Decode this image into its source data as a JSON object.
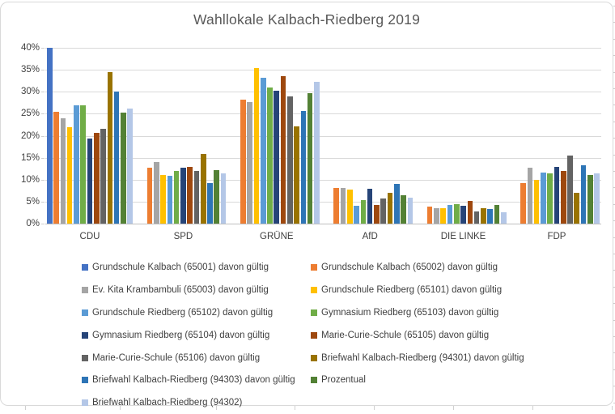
{
  "chart_data": {
    "type": "bar",
    "title": "Wahllokale Kalbach-Riedberg 2019",
    "categories": [
      "CDU",
      "SPD",
      "GRÜNE",
      "AfD",
      "DIE LINKE",
      "FDP"
    ],
    "y_axis": {
      "unit": "%",
      "min": 0,
      "max": 40,
      "step": 5,
      "tick_labels": [
        "40%",
        "35%",
        "30%",
        "25%",
        "20%",
        "15%",
        "10%",
        "5%",
        "0%"
      ]
    },
    "grid": true,
    "legend_position": "bottom",
    "series": [
      {
        "name": "Grundschule Kalbach (65001) davon gültig",
        "color": "#4472C4",
        "values": [
          40.0,
          0,
          0,
          0,
          0,
          0
        ]
      },
      {
        "name": "Grundschule Kalbach (65002) davon gültig",
        "color": "#ED7D31",
        "values": [
          25.4,
          12.8,
          28.3,
          8.1,
          3.9,
          9.2
        ]
      },
      {
        "name": "Ev. Kita Krambambuli (65003) davon gültig",
        "color": "#A5A5A5",
        "values": [
          24.0,
          14.1,
          27.6,
          8.2,
          3.5,
          12.8
        ]
      },
      {
        "name": "Grundschule Riedberg (65101) davon gültig",
        "color": "#FFC000",
        "values": [
          21.9,
          11.1,
          35.4,
          7.7,
          3.6,
          9.9
        ]
      },
      {
        "name": "Grundschule Riedberg (65102) davon gültig",
        "color": "#5B9BD5",
        "values": [
          27.0,
          10.8,
          33.2,
          4.1,
          4.2,
          11.7
        ]
      },
      {
        "name": "Gymnasium Riedberg (65103) davon gültig",
        "color": "#70AD47",
        "values": [
          27.0,
          12.0,
          30.9,
          5.4,
          4.5,
          11.4
        ]
      },
      {
        "name": "Gymnasium Riedberg (65104) davon gültig",
        "color": "#264478",
        "values": [
          19.3,
          12.7,
          30.2,
          8.0,
          4.1,
          12.9
        ]
      },
      {
        "name": "Marie-Curie-Schule (65105) davon gültig",
        "color": "#9E480E",
        "values": [
          20.6,
          13.0,
          33.5,
          4.3,
          5.2,
          12.0
        ]
      },
      {
        "name": "Marie-Curie-Schule (65106) davon gültig",
        "color": "#636363",
        "values": [
          21.5,
          11.9,
          29.0,
          5.7,
          2.8,
          15.5
        ]
      },
      {
        "name": "Briefwahl Kalbach-Riedberg (94301) davon gültig",
        "color": "#997300",
        "values": [
          34.5,
          15.8,
          22.1,
          7.0,
          3.5,
          7.1
        ]
      },
      {
        "name": "Briefwahl Kalbach-Riedberg (94303) davon gültig",
        "color": "#2E75B6",
        "values": [
          30.0,
          9.2,
          25.7,
          9.1,
          3.3,
          13.2
        ]
      },
      {
        "name": "Prozentual",
        "color": "#538135",
        "values": [
          25.2,
          12.2,
          29.7,
          6.4,
          4.2,
          11.1
        ]
      },
      {
        "name": "Briefwahl Kalbach-Riedberg (94302)",
        "color": "#B4C7E7",
        "values": [
          26.2,
          11.4,
          32.2,
          6.0,
          2.6,
          11.5
        ]
      }
    ]
  },
  "style_colors": {
    "title_text": "#595959",
    "axis_text": "#404040",
    "legend_text": "#404040",
    "gridline": "#d9d9d9",
    "axis_line": "#bfbfbf",
    "chart_border": "#d9d9d9"
  }
}
